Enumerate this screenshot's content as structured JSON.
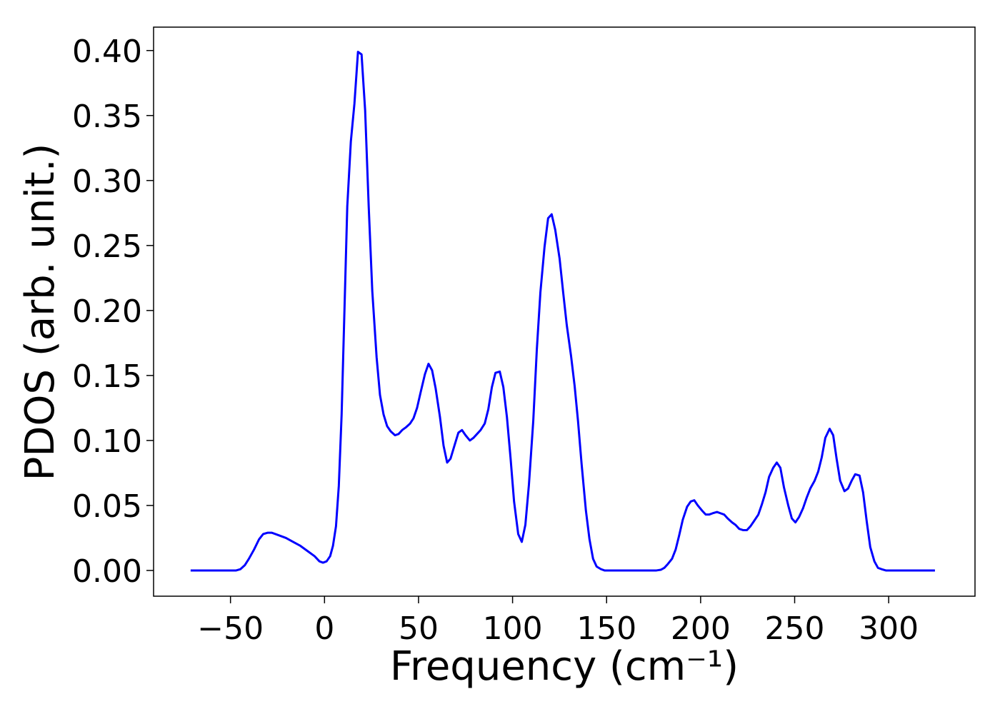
{
  "chart_data": {
    "type": "line",
    "x_label": "Frequency (cm⁻¹)",
    "y_label": "PDOS (arb. unit.)",
    "xlim": [
      -90.9,
      345.9
    ],
    "ylim": [
      -0.0198,
      0.418
    ],
    "xticks": [
      {
        "value": -50,
        "label": "−50"
      },
      0,
      50,
      100,
      150,
      200,
      250,
      300
    ],
    "yticks": [
      {
        "value": 0,
        "label": "0.00"
      },
      {
        "value": 0.05,
        "label": "0.05"
      },
      {
        "value": 0.1,
        "label": "0.10"
      },
      {
        "value": 0.15,
        "label": "0.15"
      },
      {
        "value": 0.2,
        "label": "0.20"
      },
      {
        "value": 0.25,
        "label": "0.25"
      },
      {
        "value": 0.3,
        "label": "0.30"
      },
      {
        "value": 0.35,
        "label": "0.35"
      },
      {
        "value": 0.4,
        "label": "0.40"
      }
    ],
    "grid": false,
    "series": [
      {
        "color": "#0000ff",
        "x": [
          -71.2,
          -58.3,
          -47.0,
          -44.7,
          -42.4,
          -40.2,
          -37.5,
          -34.8,
          -32.6,
          -30.3,
          -28.0,
          -24.2,
          -20.5,
          -16.7,
          -12.9,
          -9.1,
          -5.3,
          -2.7,
          -0.8,
          1.1,
          3.0,
          4.5,
          6.1,
          7.6,
          9.1,
          10.6,
          12.1,
          14.0,
          15.9,
          17.8,
          19.7,
          21.6,
          23.5,
          25.4,
          27.7,
          29.5,
          31.4,
          33.3,
          35.2,
          37.5,
          39.4,
          41.3,
          43.2,
          45.5,
          47.3,
          49.2,
          51.1,
          53.4,
          55.3,
          57.2,
          59.1,
          61.4,
          63.3,
          65.2,
          67.0,
          69.3,
          71.2,
          73.1,
          75.0,
          77.3,
          79.2,
          81.1,
          83.0,
          85.2,
          87.1,
          89.0,
          90.9,
          93.2,
          95.1,
          97.0,
          98.9,
          100.8,
          103.0,
          104.9,
          106.8,
          108.7,
          111.0,
          112.9,
          114.8,
          117.0,
          118.9,
          120.8,
          122.7,
          125.0,
          126.9,
          128.8,
          131.1,
          133.0,
          134.8,
          136.7,
          139.0,
          140.9,
          142.8,
          144.7,
          147.0,
          148.9,
          176.5,
          178.8,
          180.7,
          182.6,
          184.8,
          186.7,
          188.6,
          190.5,
          192.8,
          194.7,
          196.6,
          198.5,
          200.8,
          202.7,
          204.5,
          206.4,
          208.7,
          210.6,
          212.5,
          214.4,
          216.7,
          218.6,
          220.5,
          222.7,
          224.6,
          226.5,
          228.4,
          230.7,
          232.6,
          234.5,
          236.4,
          238.6,
          240.5,
          242.4,
          244.3,
          246.6,
          248.5,
          250.4,
          252.3,
          254.5,
          256.4,
          258.3,
          260.6,
          262.5,
          264.4,
          266.3,
          268.6,
          270.5,
          272.3,
          274.2,
          276.5,
          278.4,
          280.3,
          282.2,
          284.5,
          286.4,
          288.3,
          290.2,
          292.4,
          294.3,
          296.2,
          298.5,
          324.6
        ],
        "values": [
          0,
          0,
          0,
          0.001,
          0.004,
          0.009,
          0.016,
          0.024,
          0.028,
          0.029,
          0.029,
          0.027,
          0.025,
          0.022,
          0.019,
          0.015,
          0.011,
          0.007,
          0.006,
          0.007,
          0.011,
          0.019,
          0.034,
          0.065,
          0.12,
          0.2,
          0.28,
          0.33,
          0.359,
          0.399,
          0.397,
          0.354,
          0.28,
          0.215,
          0.164,
          0.135,
          0.12,
          0.111,
          0.107,
          0.104,
          0.105,
          0.108,
          0.11,
          0.113,
          0.117,
          0.125,
          0.137,
          0.151,
          0.159,
          0.154,
          0.14,
          0.118,
          0.096,
          0.083,
          0.086,
          0.097,
          0.106,
          0.108,
          0.104,
          0.1,
          0.102,
          0.105,
          0.108,
          0.113,
          0.124,
          0.141,
          0.152,
          0.153,
          0.141,
          0.118,
          0.087,
          0.053,
          0.028,
          0.022,
          0.035,
          0.066,
          0.115,
          0.17,
          0.214,
          0.249,
          0.271,
          0.274,
          0.262,
          0.24,
          0.214,
          0.189,
          0.165,
          0.142,
          0.115,
          0.082,
          0.046,
          0.024,
          0.009,
          0.003,
          0.001,
          0,
          0,
          0.0005,
          0.002,
          0.005,
          0.009,
          0.016,
          0.027,
          0.039,
          0.049,
          0.053,
          0.054,
          0.05,
          0.046,
          0.043,
          0.043,
          0.044,
          0.045,
          0.044,
          0.043,
          0.04,
          0.037,
          0.035,
          0.032,
          0.031,
          0.031,
          0.034,
          0.038,
          0.043,
          0.051,
          0.06,
          0.072,
          0.079,
          0.083,
          0.079,
          0.064,
          0.05,
          0.04,
          0.037,
          0.041,
          0.048,
          0.056,
          0.063,
          0.069,
          0.076,
          0.087,
          0.102,
          0.109,
          0.104,
          0.086,
          0.069,
          0.061,
          0.063,
          0.069,
          0.074,
          0.073,
          0.06,
          0.038,
          0.018,
          0.007,
          0.002,
          0.001,
          0,
          0
        ]
      }
    ]
  }
}
